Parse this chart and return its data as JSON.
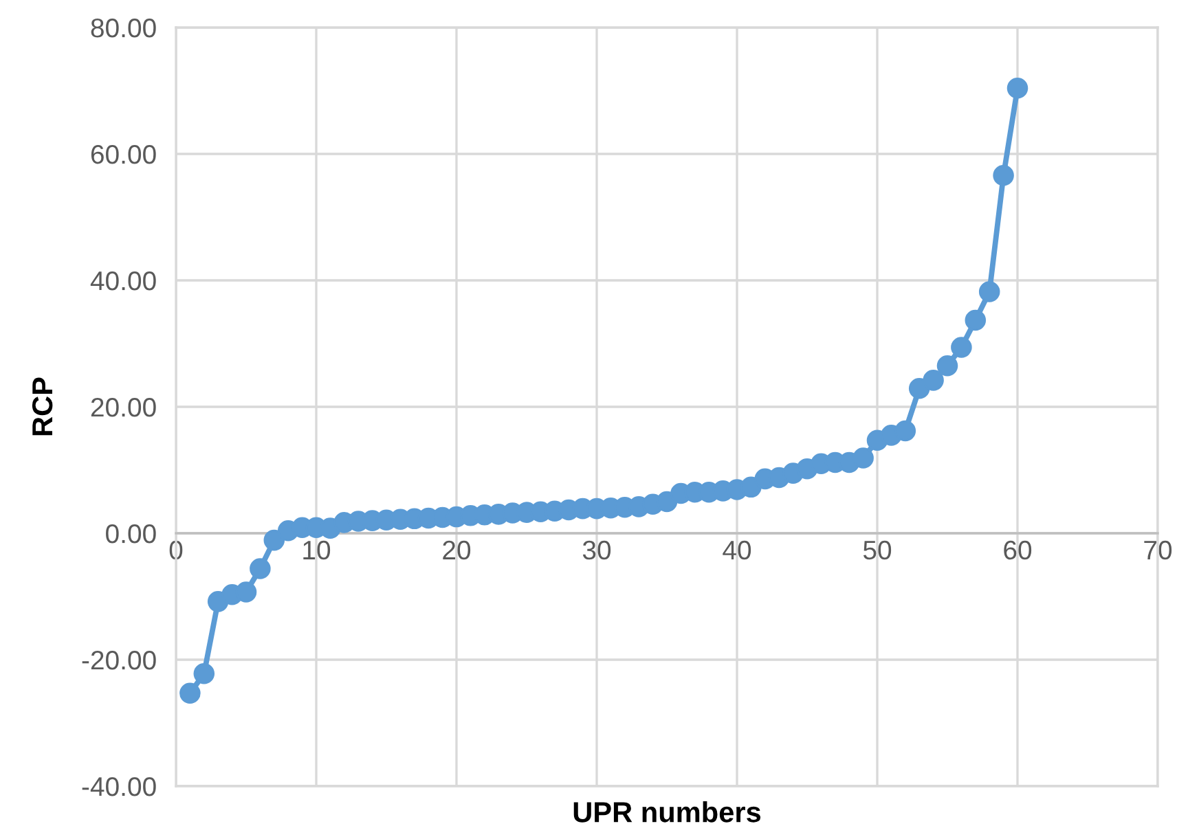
{
  "chart_data": {
    "type": "line",
    "xlabel": "UPR numbers",
    "ylabel": "RCP",
    "x": [
      1,
      2,
      3,
      4,
      5,
      6,
      7,
      8,
      9,
      10,
      11,
      12,
      13,
      14,
      15,
      16,
      17,
      18,
      19,
      20,
      21,
      22,
      23,
      24,
      25,
      26,
      27,
      28,
      29,
      30,
      31,
      32,
      33,
      34,
      35,
      36,
      37,
      38,
      39,
      40,
      41,
      42,
      43,
      44,
      45,
      46,
      47,
      48,
      49,
      50,
      51,
      52,
      53,
      54,
      55,
      56,
      57,
      58,
      59,
      60
    ],
    "series": [
      {
        "color": "#5b9bd5",
        "values": [
          -25.3,
          -22.2,
          -10.8,
          -9.7,
          -9.3,
          -5.6,
          -1.1,
          0.4,
          0.9,
          0.9,
          0.8,
          1.7,
          1.9,
          2.0,
          2.1,
          2.2,
          2.3,
          2.4,
          2.5,
          2.6,
          2.8,
          2.9,
          3.0,
          3.2,
          3.3,
          3.4,
          3.5,
          3.7,
          3.9,
          3.9,
          4.0,
          4.1,
          4.2,
          4.6,
          5.0,
          6.3,
          6.5,
          6.5,
          6.7,
          6.9,
          7.3,
          8.6,
          8.8,
          9.5,
          10.2,
          11.0,
          11.2,
          11.2,
          11.9,
          14.7,
          15.5,
          16.2,
          22.9,
          24.2,
          26.5,
          29.4,
          33.7,
          38.2,
          56.6,
          70.4
        ]
      }
    ],
    "xlim": [
      0,
      70
    ],
    "xticks": [
      0,
      10,
      20,
      30,
      40,
      50,
      60,
      70
    ],
    "ylim": [
      -40,
      80
    ],
    "yticks": [
      {
        "value": -40,
        "label": "-40.00"
      },
      {
        "value": -20,
        "label": "-20.00"
      },
      {
        "value": 0,
        "label": "0.00"
      },
      {
        "value": 20,
        "label": "20.00"
      },
      {
        "value": 40,
        "label": "40.00"
      },
      {
        "value": 60,
        "label": "60.00"
      },
      {
        "value": 80,
        "label": "80.00"
      }
    ],
    "grid": true,
    "marker": "circle",
    "line_style": "solid"
  }
}
